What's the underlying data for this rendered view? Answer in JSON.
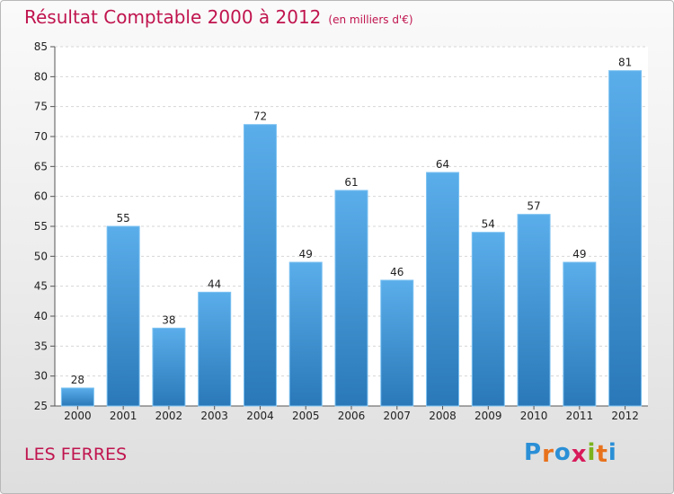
{
  "header": {
    "title": "Résultat Comptable 2000 à 2012",
    "unit": "(en milliers d'€)"
  },
  "footer": {
    "place": "LES FERRES",
    "logo": {
      "letters": [
        "P",
        "r",
        "o",
        "x",
        "i",
        "t",
        "i"
      ],
      "colors": [
        "#2a8fd6",
        "#e8721c",
        "#2a8fd6",
        "#d81b5a",
        "#7bb31c",
        "#e8721c",
        "#2a8fd6"
      ]
    }
  },
  "colors": {
    "title": "#c0144e",
    "bar_light": "#5aaeea",
    "bar_dark": "#2a78b8"
  },
  "chart_data": {
    "type": "bar",
    "categories": [
      "2000",
      "2001",
      "2002",
      "2003",
      "2004",
      "2005",
      "2006",
      "2007",
      "2008",
      "2009",
      "2010",
      "2011",
      "2012"
    ],
    "values": [
      28,
      55,
      38,
      44,
      72,
      49,
      61,
      46,
      64,
      54,
      57,
      49,
      81
    ],
    "ylim": [
      25,
      85
    ],
    "yticks": [
      25,
      30,
      35,
      40,
      45,
      50,
      55,
      60,
      65,
      70,
      75,
      80,
      85
    ],
    "grid": true,
    "legend": "none"
  }
}
